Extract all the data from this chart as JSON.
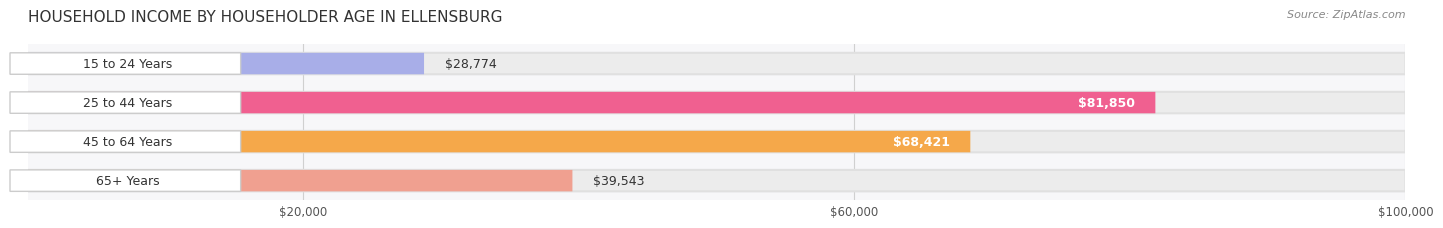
{
  "title": "HOUSEHOLD INCOME BY HOUSEHOLDER AGE IN ELLENSBURG",
  "source": "Source: ZipAtlas.com",
  "categories": [
    "15 to 24 Years",
    "25 to 44 Years",
    "45 to 64 Years",
    "65+ Years"
  ],
  "values": [
    28774,
    81850,
    68421,
    39543
  ],
  "labels": [
    "$28,774",
    "$81,850",
    "$68,421",
    "$39,543"
  ],
  "bar_colors": [
    "#a8aee8",
    "#f06090",
    "#f5a84a",
    "#f0a090"
  ],
  "bar_bg_color": "#f0f0f0",
  "row_bg_colors": [
    "#f7f7f9",
    "#f7f7f9",
    "#f7f7f9",
    "#f7f7f9"
  ],
  "xlim": [
    0,
    100000
  ],
  "xticks": [
    20000,
    60000,
    100000
  ],
  "xticklabels": [
    "$20,000",
    "$60,000",
    "$100,000"
  ],
  "label_inside_threshold": 50000,
  "figsize": [
    14.06,
    2.33
  ],
  "dpi": 100,
  "title_fontsize": 11,
  "source_fontsize": 8,
  "bar_label_fontsize": 9,
  "category_fontsize": 9,
  "tick_fontsize": 8.5,
  "background_color": "#ffffff",
  "grid_color": "#d0d0d0"
}
